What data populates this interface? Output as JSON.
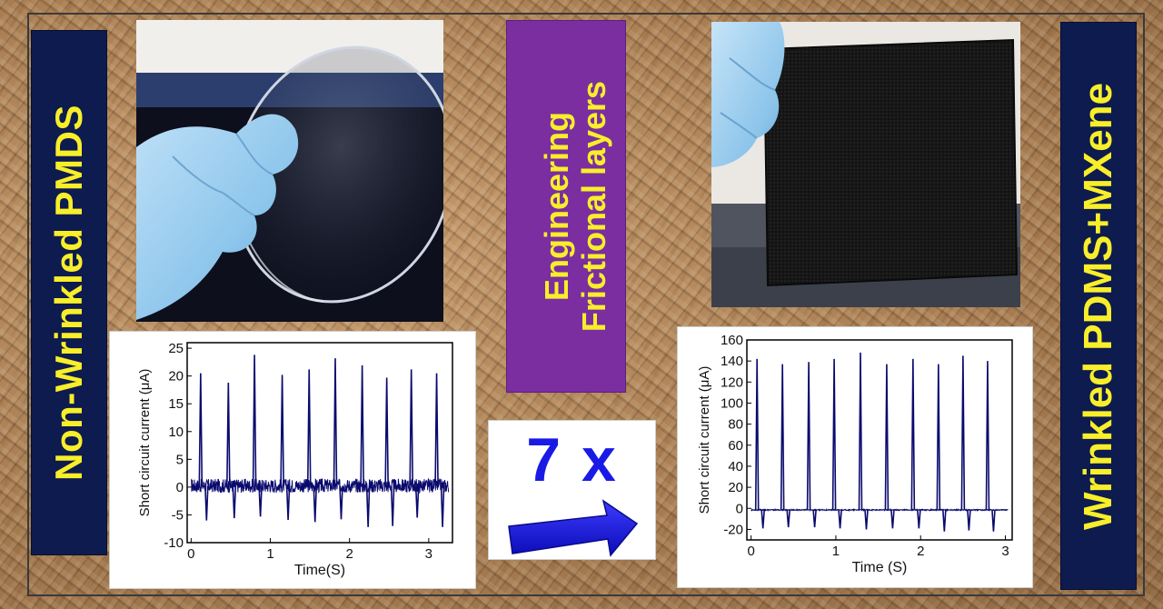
{
  "labels": {
    "left": "Non-Wrinkled  PMDS",
    "right": "Wrinkled PDMS+MXene",
    "center_line1": "Engineering",
    "center_line2": "Frictional layers"
  },
  "factor": "7 x",
  "colors": {
    "label_bg": "#0d1b4f",
    "label_text": "#f8ee2a",
    "center_bg": "#7a2ea0",
    "arrow": "#1a1ae6",
    "trace": "#0a0a6e"
  },
  "chart_data": [
    {
      "type": "line",
      "xlabel": "Time(S)",
      "ylabel": "Short circuit current (μA)",
      "xlim": [
        -0.05,
        3.3
      ],
      "ylim": [
        -10,
        26
      ],
      "xticks": [
        0,
        1,
        2,
        3
      ],
      "yticks": [
        -10,
        -5,
        0,
        5,
        10,
        15,
        20,
        25
      ],
      "noise_band": [
        -1,
        1.5
      ],
      "series": [
        {
          "peaks": [
            {
              "t": 0.12,
              "pos": 20.5,
              "neg": -6.0
            },
            {
              "t": 0.47,
              "pos": 18.8,
              "neg": -5.6
            },
            {
              "t": 0.8,
              "pos": 23.8,
              "neg": -5.3
            },
            {
              "t": 1.15,
              "pos": 20.2,
              "neg": -5.9
            },
            {
              "t": 1.49,
              "pos": 21.2,
              "neg": -6.3
            },
            {
              "t": 1.82,
              "pos": 23.2,
              "neg": -5.8
            },
            {
              "t": 2.16,
              "pos": 21.9,
              "neg": -7.2
            },
            {
              "t": 2.47,
              "pos": 19.7,
              "neg": -7.0
            },
            {
              "t": 2.78,
              "pos": 21.2,
              "neg": -5.5
            },
            {
              "t": 3.1,
              "pos": 20.5,
              "neg": -7.2
            }
          ]
        }
      ]
    },
    {
      "type": "line",
      "xlabel": "Time (S)",
      "ylabel": "Short circuit current (μA)",
      "xlim": [
        -0.05,
        3.08
      ],
      "ylim": [
        -30,
        160
      ],
      "xticks": [
        0,
        1,
        2,
        3
      ],
      "yticks": [
        -20,
        0,
        20,
        40,
        60,
        80,
        100,
        120,
        140,
        160
      ],
      "noise_band": [
        -2,
        -1
      ],
      "series": [
        {
          "peaks": [
            {
              "t": 0.07,
              "pos": 142,
              "neg": -19
            },
            {
              "t": 0.37,
              "pos": 137,
              "neg": -18
            },
            {
              "t": 0.68,
              "pos": 139,
              "neg": -18
            },
            {
              "t": 0.98,
              "pos": 142,
              "neg": -19
            },
            {
              "t": 1.29,
              "pos": 148,
              "neg": -20
            },
            {
              "t": 1.6,
              "pos": 137,
              "neg": -19
            },
            {
              "t": 1.91,
              "pos": 142,
              "neg": -19
            },
            {
              "t": 2.21,
              "pos": 137,
              "neg": -22
            },
            {
              "t": 2.5,
              "pos": 145,
              "neg": -21
            },
            {
              "t": 2.79,
              "pos": 140,
              "neg": -22
            }
          ]
        }
      ]
    }
  ]
}
